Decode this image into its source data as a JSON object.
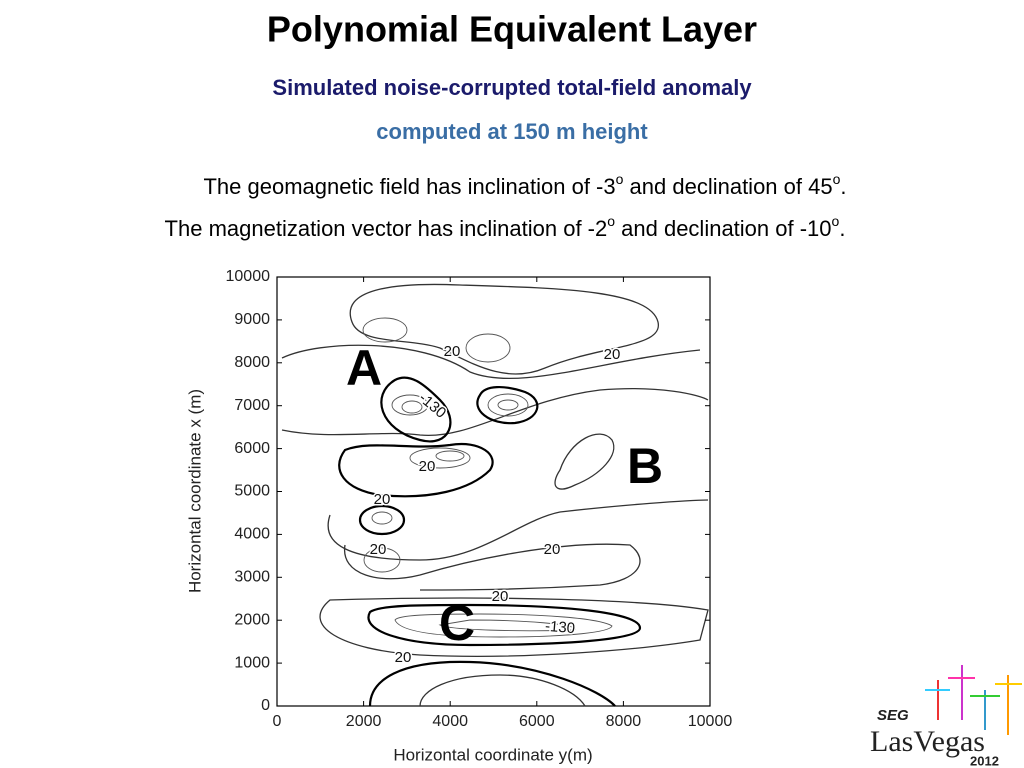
{
  "title": "Polynomial Equivalent Layer",
  "subtitle": "Simulated noise-corrupted total-field anomaly",
  "subtitle2": "computed at 150 m height",
  "text_lines": [
    {
      "parts": [
        "The geomagnetic field has inclination of -3",
        "o",
        " and declination of 45",
        "o",
        "."
      ]
    },
    {
      "parts": [
        "The magnetization vector has inclination of -2",
        "o",
        " and declination of -10",
        "o",
        "."
      ]
    }
  ],
  "chart_data": {
    "type": "contour",
    "x_label": "Horizontal coordinate y(m)",
    "y_label": "Horizontal coordinate x (m)",
    "xlim": [
      0,
      10000
    ],
    "xticks": [
      0,
      2000,
      4000,
      6000,
      8000,
      10000
    ],
    "ylim": [
      0,
      10000
    ],
    "yticks": [
      0,
      1000,
      2000,
      3000,
      4000,
      5000,
      6000,
      7000,
      8000,
      9000,
      10000
    ],
    "contour_labels": [
      20,
      20,
      -130,
      20,
      20,
      20,
      20,
      20,
      -130,
      20
    ],
    "region_labels": [
      "A",
      "B",
      "C"
    ]
  },
  "logo": {
    "org": "SEG",
    "name": "LasVegas",
    "year": "2012"
  }
}
